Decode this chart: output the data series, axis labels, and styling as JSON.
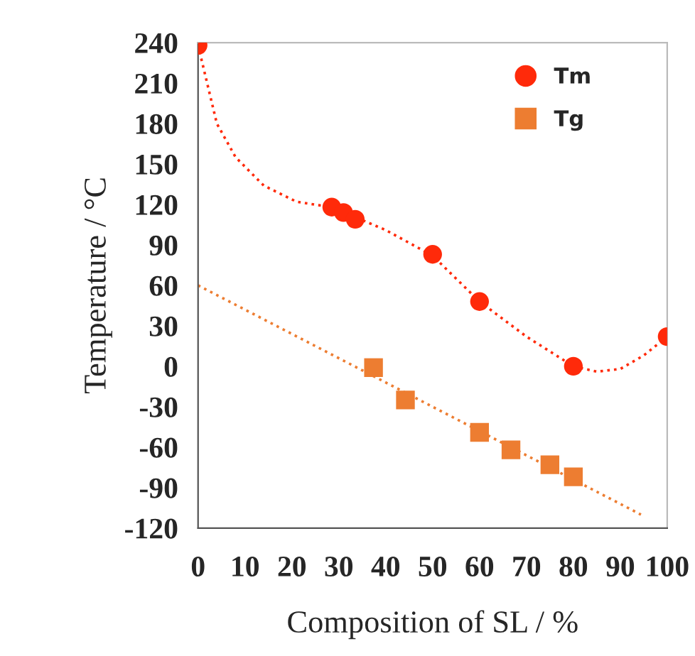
{
  "chart_data": {
    "type": "scatter",
    "xlabel": "Composition of SL / %",
    "ylabel": "Temperature / °C",
    "xlim": [
      0,
      100
    ],
    "xticks": [
      0,
      10,
      20,
      30,
      40,
      50,
      60,
      70,
      80,
      90,
      100
    ],
    "ylim": [
      -120,
      240
    ],
    "yticks": [
      -120,
      -90,
      -60,
      -30,
      0,
      30,
      60,
      90,
      120,
      150,
      180,
      210,
      240
    ],
    "grid": false,
    "legend": "top right",
    "series": [
      {
        "name": "Tm",
        "marker": "circle",
        "color": "#ff2a0a",
        "x": [
          0,
          28.5,
          31,
          33.5,
          50,
          60,
          80,
          100
        ],
        "values": [
          238,
          118,
          114,
          109,
          83,
          48,
          0,
          22
        ]
      },
      {
        "name": "Tg",
        "marker": "square",
        "color": "#ed7d31",
        "x": [
          37.4,
          44.2,
          60,
          66.7,
          75,
          80
        ],
        "values": [
          -1,
          -25,
          -49,
          -62,
          -73,
          -82
        ]
      },
      {
        "type": "line",
        "line_style": "dotted",
        "color": "#ff2a0a",
        "x": [
          0,
          4,
          8,
          14,
          21,
          28.5,
          40,
          50,
          60,
          70,
          80,
          85,
          90,
          95,
          100
        ],
        "values": [
          238,
          180,
          155,
          134,
          122,
          118,
          101,
          82,
          48,
          22,
          0,
          -4,
          -2,
          8,
          22
        ]
      },
      {
        "type": "line",
        "line_style": "dotted",
        "color": "#ed7d31",
        "x": [
          0,
          94.4
        ],
        "values": [
          60,
          -110
        ]
      }
    ]
  }
}
